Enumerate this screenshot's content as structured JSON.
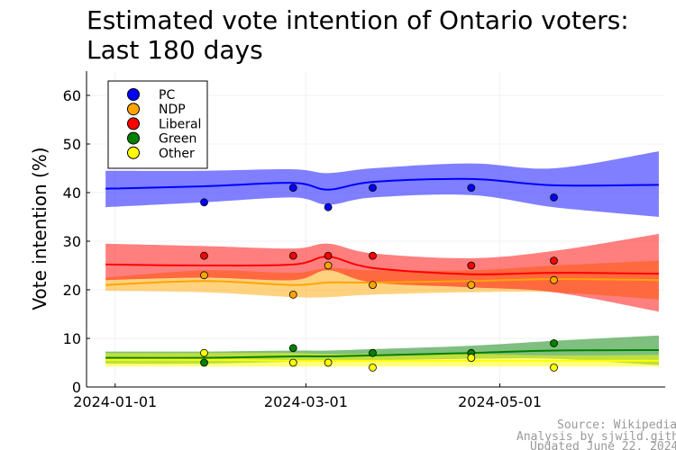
{
  "chart_data": {
    "type": "line",
    "title_lines": [
      "Estimated vote intention of Ontario voters:",
      "Last 180 days"
    ],
    "xlabel": "",
    "ylabel": "Vote intention (%)",
    "ylim": [
      0,
      65
    ],
    "yticks": [
      0,
      10,
      20,
      30,
      40,
      50,
      60
    ],
    "xlim": [
      "2023-12-23",
      "2024-06-22"
    ],
    "xticks": [
      "2024-01-01",
      "2024-03-01",
      "2024-05-01"
    ],
    "grid": true,
    "legend_position": "top-left",
    "source_lines": [
      "Source: Wikipedia",
      "Analysis by sjwild.github.io",
      "Updated June 22, 2024"
    ],
    "x_nodes": [
      "2023-12-29",
      "2024-01-29",
      "2024-02-26",
      "2024-03-08",
      "2024-03-22",
      "2024-04-22",
      "2024-05-18",
      "2024-06-20"
    ],
    "series": [
      {
        "name": "PC",
        "color": "#0000ff",
        "mean": [
          40.8,
          41.3,
          42.0,
          40.6,
          42.2,
          42.8,
          41.5,
          41.6
        ],
        "lower": [
          37.0,
          38.0,
          39.0,
          37.5,
          39.0,
          39.5,
          37.0,
          35.0
        ],
        "upper": [
          44.5,
          44.5,
          44.8,
          44.0,
          45.0,
          46.0,
          45.0,
          48.5
        ],
        "points": [
          [
            "2024-01-29",
            38
          ],
          [
            "2024-02-26",
            41
          ],
          [
            "2024-03-08",
            37
          ],
          [
            "2024-03-22",
            41
          ],
          [
            "2024-04-22",
            41
          ],
          [
            "2024-05-18",
            39
          ]
        ]
      },
      {
        "name": "NDP",
        "color": "#ffa500",
        "mean": [
          21.0,
          21.8,
          21.0,
          21.5,
          21.5,
          21.8,
          22.2,
          22.0
        ],
        "lower": [
          19.8,
          19.5,
          18.5,
          18.5,
          19.0,
          19.5,
          19.5,
          18.0
        ],
        "upper": [
          22.5,
          24.0,
          23.5,
          24.5,
          24.0,
          24.0,
          25.0,
          26.0
        ],
        "points": [
          [
            "2024-01-29",
            23
          ],
          [
            "2024-02-26",
            19
          ],
          [
            "2024-03-08",
            25
          ],
          [
            "2024-03-22",
            21
          ],
          [
            "2024-04-22",
            21
          ],
          [
            "2024-05-18",
            22
          ]
        ]
      },
      {
        "name": "Liberal",
        "color": "#ff0000",
        "mean": [
          25.2,
          25.0,
          25.2,
          26.8,
          24.5,
          23.2,
          23.5,
          23.3
        ],
        "lower": [
          22.0,
          22.5,
          22.0,
          24.0,
          21.5,
          20.5,
          19.5,
          15.5
        ],
        "upper": [
          29.5,
          29.0,
          28.5,
          29.5,
          27.5,
          26.5,
          28.0,
          31.5
        ],
        "points": [
          [
            "2024-01-29",
            27
          ],
          [
            "2024-02-26",
            27
          ],
          [
            "2024-03-08",
            27
          ],
          [
            "2024-03-22",
            27
          ],
          [
            "2024-04-22",
            25
          ],
          [
            "2024-05-18",
            26
          ]
        ]
      },
      {
        "name": "Green",
        "color": "#008000",
        "mean": [
          6.0,
          6.0,
          6.3,
          6.3,
          6.5,
          7.0,
          7.5,
          7.6
        ],
        "lower": [
          4.8,
          4.8,
          5.2,
          5.3,
          5.5,
          5.8,
          5.8,
          4.5
        ],
        "upper": [
          7.3,
          7.3,
          7.5,
          7.5,
          7.8,
          8.5,
          9.5,
          10.6
        ],
        "points": [
          [
            "2024-01-29",
            5
          ],
          [
            "2024-02-26",
            8
          ],
          [
            "2024-03-22",
            7
          ],
          [
            "2024-04-22",
            7
          ],
          [
            "2024-05-18",
            9
          ]
        ]
      },
      {
        "name": "Other",
        "color": "#ffff00",
        "mean": [
          5.6,
          5.6,
          5.4,
          5.4,
          5.4,
          5.4,
          5.4,
          5.4
        ],
        "lower": [
          4.2,
          4.2,
          4.2,
          4.2,
          4.2,
          4.2,
          4.2,
          4.2
        ],
        "upper": [
          7.0,
          7.0,
          7.0,
          6.8,
          6.8,
          6.8,
          6.5,
          6.6
        ],
        "points": [
          [
            "2024-01-29",
            7
          ],
          [
            "2024-02-26",
            5
          ],
          [
            "2024-03-08",
            5
          ],
          [
            "2024-03-22",
            4
          ],
          [
            "2024-04-22",
            6
          ],
          [
            "2024-05-18",
            4
          ]
        ]
      }
    ]
  }
}
